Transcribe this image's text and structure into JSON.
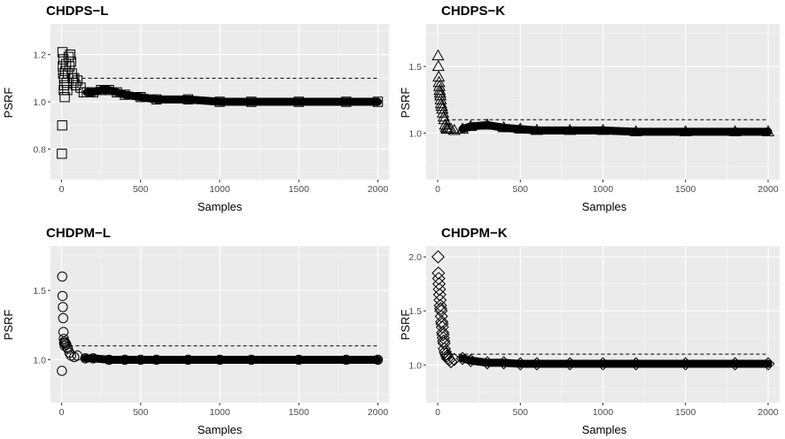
{
  "chart_data": [
    {
      "type": "scatter",
      "title": "CHDPS−L",
      "xlabel": "Samples",
      "ylabel": "PSRF",
      "marker": "square",
      "xlim": [
        -70,
        2070
      ],
      "ylim": [
        0.67,
        1.33
      ],
      "xticks": [
        0,
        500,
        1000,
        1500,
        2000
      ],
      "yticks": [
        0.8,
        1.0,
        1.2
      ],
      "ytick_labels": [
        "0.8",
        "1.0",
        "1.2"
      ],
      "reference_line": 1.1,
      "series": [
        {
          "x": [
            2,
            4,
            6,
            8,
            10,
            12,
            14,
            16,
            18,
            20,
            24,
            28,
            32,
            36,
            40,
            45,
            50,
            55,
            60,
            65,
            70,
            75,
            80,
            90,
            100,
            120,
            140,
            160,
            200,
            250,
            300,
            350,
            400,
            500,
            600,
            800,
            1000,
            1200,
            1500,
            1800,
            2000
          ],
          "y": [
            0.78,
            0.9,
            1.21,
            1.15,
            1.12,
            1.18,
            1.05,
            1.1,
            1.07,
            1.02,
            1.13,
            1.16,
            1.08,
            1.05,
            1.12,
            1.19,
            1.15,
            1.2,
            1.17,
            1.12,
            1.1,
            1.08,
            1.1,
            1.07,
            1.09,
            1.06,
            1.04,
            1.04,
            1.04,
            1.05,
            1.05,
            1.04,
            1.03,
            1.02,
            1.01,
            1.01,
            1.0,
            1.0,
            1.0,
            1.0,
            1.0
          ]
        }
      ]
    },
    {
      "type": "scatter",
      "title": "CHDPS−K",
      "xlabel": "Samples",
      "ylabel": "PSRF",
      "marker": "triangle",
      "xlim": [
        -70,
        2070
      ],
      "ylim": [
        0.65,
        1.82
      ],
      "xticks": [
        0,
        500,
        1000,
        1500,
        2000
      ],
      "yticks": [
        1.0,
        1.5
      ],
      "ytick_labels": [
        "1.0",
        "1.5"
      ],
      "reference_line": 1.1,
      "series": [
        {
          "x": [
            2,
            4,
            6,
            8,
            10,
            12,
            14,
            16,
            18,
            20,
            24,
            28,
            32,
            36,
            40,
            45,
            50,
            55,
            60,
            70,
            80,
            100,
            150,
            200,
            300,
            400,
            500,
            600,
            800,
            1000,
            1200,
            1500,
            1800,
            2000
          ],
          "y": [
            1.58,
            1.5,
            1.42,
            1.38,
            1.35,
            1.32,
            1.3,
            1.28,
            1.25,
            1.22,
            1.2,
            1.18,
            1.15,
            1.12,
            1.1,
            1.06,
            1.04,
            1.03,
            1.03,
            1.03,
            1.03,
            1.02,
            1.03,
            1.05,
            1.06,
            1.04,
            1.03,
            1.02,
            1.02,
            1.02,
            1.01,
            1.01,
            1.01,
            1.01
          ]
        }
      ]
    },
    {
      "type": "scatter",
      "title": "CHDPM−L",
      "xlabel": "Samples",
      "ylabel": "PSRF",
      "marker": "circle",
      "xlim": [
        -70,
        2070
      ],
      "ylim": [
        0.69,
        1.82
      ],
      "xticks": [
        0,
        500,
        1000,
        1500,
        2000
      ],
      "yticks": [
        1.0,
        1.5
      ],
      "ytick_labels": [
        "1.0",
        "1.5"
      ],
      "reference_line": 1.1,
      "series": [
        {
          "x": [
            2,
            4,
            6,
            8,
            10,
            12,
            14,
            16,
            18,
            20,
            25,
            30,
            35,
            40,
            50,
            60,
            80,
            100,
            150,
            200,
            300,
            400,
            500,
            600,
            800,
            1000,
            1200,
            1500,
            1800,
            2000
          ],
          "y": [
            0.92,
            1.6,
            1.46,
            1.38,
            1.3,
            1.2,
            1.15,
            1.12,
            1.13,
            1.1,
            1.12,
            1.11,
            1.09,
            1.08,
            1.05,
            1.03,
            1.02,
            1.03,
            1.01,
            1.01,
            1.0,
            1.0,
            1.0,
            1.0,
            1.0,
            1.0,
            1.0,
            1.0,
            1.0,
            1.0
          ]
        }
      ]
    },
    {
      "type": "scatter",
      "title": "CHDPM−K",
      "xlabel": "Samples",
      "ylabel": "PSRF",
      "marker": "diamond",
      "xlim": [
        -70,
        2070
      ],
      "ylim": [
        0.65,
        2.1
      ],
      "xticks": [
        0,
        500,
        1000,
        1500,
        2000
      ],
      "yticks": [
        1.0,
        1.5,
        2.0
      ],
      "ytick_labels": [
        "1.0",
        "1.5",
        "2.0"
      ],
      "reference_line": 1.1,
      "series": [
        {
          "x": [
            2,
            4,
            6,
            8,
            10,
            12,
            14,
            16,
            18,
            20,
            22,
            24,
            26,
            28,
            30,
            32,
            34,
            36,
            38,
            40,
            45,
            50,
            55,
            60,
            70,
            80,
            100,
            150,
            200,
            300,
            400,
            500,
            600,
            800,
            1000,
            1200,
            1500,
            1800,
            2000
          ],
          "y": [
            2.0,
            1.85,
            1.8,
            1.75,
            1.7,
            1.65,
            1.6,
            1.55,
            1.52,
            1.5,
            1.45,
            1.4,
            1.38,
            1.35,
            1.3,
            1.28,
            1.25,
            1.22,
            1.2,
            1.15,
            1.12,
            1.1,
            1.08,
            1.06,
            1.05,
            1.03,
            1.05,
            1.06,
            1.04,
            1.02,
            1.02,
            1.01,
            1.01,
            1.01,
            1.01,
            1.01,
            1.01,
            1.01,
            1.01
          ]
        }
      ]
    }
  ]
}
